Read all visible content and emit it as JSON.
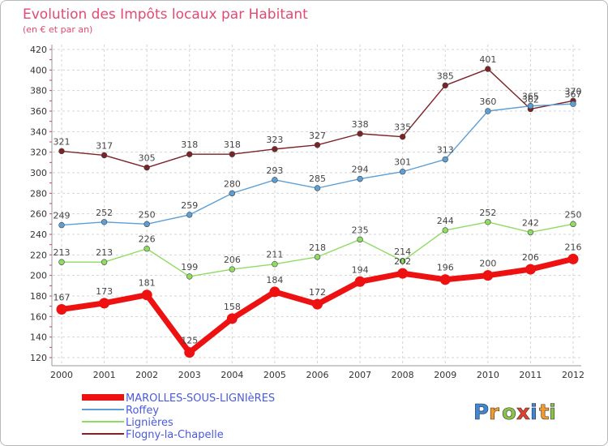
{
  "chart_data": {
    "type": "line",
    "title": "Evolution des Impôts locaux par Habitant",
    "subtitle": "(en € et par an)",
    "xlabel": "",
    "ylabel": "",
    "ylim": [
      120,
      420
    ],
    "yticks": [
      120,
      140,
      160,
      180,
      200,
      220,
      240,
      260,
      280,
      300,
      320,
      340,
      360,
      380,
      400,
      420
    ],
    "grid": true,
    "legend_position": "bottom-left",
    "categories": [
      "2000",
      "2001",
      "2002",
      "2003",
      "2004",
      "2005",
      "2006",
      "2007",
      "2008",
      "2009",
      "2010",
      "2011",
      "2012"
    ],
    "series": [
      {
        "name": "MAROLLES-SOUS-LIGNIèRES",
        "color": "#ee1111",
        "values": [
          167,
          173,
          181,
          125,
          158,
          184,
          172,
          194,
          202,
          196,
          200,
          206,
          216
        ]
      },
      {
        "name": "Roffey",
        "color": "#5b9fd6",
        "values": [
          249,
          252,
          250,
          259,
          280,
          293,
          285,
          294,
          301,
          313,
          360,
          365,
          367
        ]
      },
      {
        "name": "Lignières",
        "color": "#8fdc62",
        "values": [
          213,
          213,
          226,
          199,
          206,
          211,
          218,
          235,
          214,
          244,
          252,
          242,
          250
        ]
      },
      {
        "name": "Flogny-la-Chapelle",
        "color": "#7b2326",
        "values": [
          321,
          317,
          305,
          318,
          318,
          323,
          327,
          338,
          335,
          385,
          401,
          362,
          370
        ]
      }
    ]
  },
  "logo": {
    "letters": [
      "P",
      "r",
      "o",
      "x",
      "i",
      "t",
      "i"
    ]
  }
}
